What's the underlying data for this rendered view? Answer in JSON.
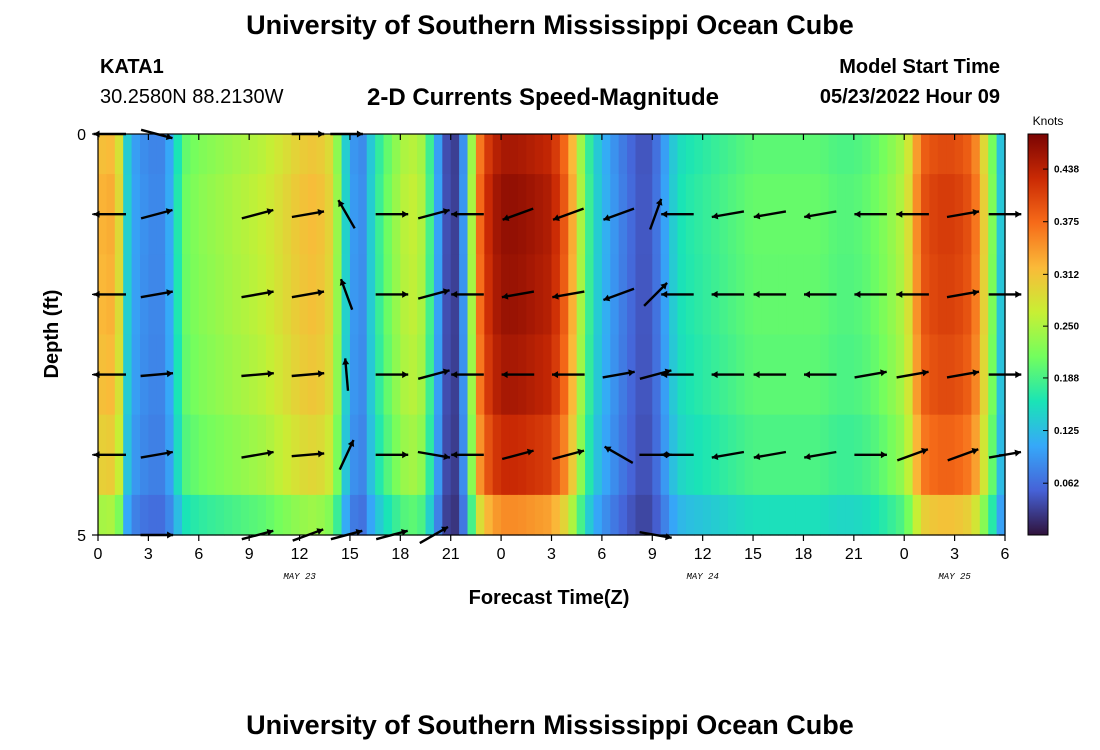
{
  "header": {
    "title": "University of Southern Mississippi Ocean Cube",
    "station": "KATA1",
    "coordinates": "30.2580N  88.2130W",
    "chart_title": "2-D Currents Speed-Magnitude",
    "model_start_label": "Model Start Time",
    "model_start_value": "05/23/2022 Hour 09"
  },
  "footer": {
    "title": "University of Southern Mississippi Ocean Cube"
  },
  "colors": {
    "colormap": [
      "#30123b",
      "#4662d7",
      "#36a8f9",
      "#1ae4b6",
      "#72fe5e",
      "#c8ef34",
      "#faba39",
      "#f66b19",
      "#ca2a04",
      "#7a0403"
    ],
    "arrow": "#000000"
  },
  "chart_data": {
    "type": "heatmap",
    "title": "2-D Currents Speed-Magnitude",
    "xlabel": "Forecast Time(Z)",
    "ylabel": "Depth (ft)",
    "colorbar_label": "Knots",
    "colorbar_ticks": [
      "0.438",
      "0.375",
      "0.312",
      "0.250",
      "0.188",
      "0.125",
      "0.062"
    ],
    "colorbar_tick_values": [
      0.438,
      0.375,
      0.312,
      0.25,
      0.188,
      0.125,
      0.062
    ],
    "colorbar_range": [
      0,
      0.48
    ],
    "x_ticks": [
      "0",
      "3",
      "6",
      "9",
      "12",
      "15",
      "18",
      "21",
      "0",
      "3",
      "6",
      "9",
      "12",
      "15",
      "18",
      "21",
      "0",
      "3",
      "6"
    ],
    "x_tick_hours": [
      0,
      3,
      6,
      9,
      12,
      15,
      18,
      21,
      24,
      27,
      30,
      33,
      36,
      39,
      42,
      45,
      48,
      51,
      54
    ],
    "date_labels": [
      {
        "text": "MAY 23",
        "hour": 12
      },
      {
        "text": "MAY 24",
        "hour": 36
      },
      {
        "text": "MAY 25",
        "hour": 51
      }
    ],
    "y_ticks": [
      "0",
      "5"
    ],
    "y_range": [
      0,
      5
    ],
    "x_range_hours": [
      0,
      54
    ],
    "speed_profile": {
      "hours": [
        0,
        0.5,
        1.2,
        1.6,
        2.2,
        3,
        3.8,
        4.5,
        5,
        6,
        7,
        8,
        9,
        10,
        11,
        12,
        13,
        14,
        14.5,
        15,
        15.7,
        16.5,
        17.5,
        18.5,
        19.2,
        20,
        20.5,
        21,
        21.5,
        22,
        22.5,
        23,
        23.5,
        24,
        25,
        26,
        27,
        28,
        28.5,
        29,
        29.5,
        30,
        31,
        32,
        32.5,
        33,
        33.5,
        34,
        34.5,
        35,
        36,
        37,
        38,
        39,
        40,
        41,
        42,
        43,
        44,
        45,
        46,
        47,
        48,
        48.5,
        49,
        50,
        51,
        52,
        52.5,
        53,
        53.5,
        54
      ],
      "speeds": [
        0.3,
        0.33,
        0.3,
        0.15,
        0.1,
        0.08,
        0.08,
        0.12,
        0.2,
        0.22,
        0.23,
        0.24,
        0.25,
        0.26,
        0.28,
        0.3,
        0.31,
        0.28,
        0.18,
        0.1,
        0.08,
        0.16,
        0.22,
        0.26,
        0.25,
        0.15,
        0.05,
        0.03,
        0.03,
        0.15,
        0.33,
        0.4,
        0.43,
        0.45,
        0.45,
        0.44,
        0.43,
        0.36,
        0.28,
        0.2,
        0.15,
        0.12,
        0.08,
        0.05,
        0.04,
        0.05,
        0.08,
        0.12,
        0.15,
        0.16,
        0.17,
        0.18,
        0.19,
        0.2,
        0.2,
        0.2,
        0.2,
        0.2,
        0.19,
        0.19,
        0.2,
        0.22,
        0.25,
        0.3,
        0.38,
        0.4,
        0.4,
        0.38,
        0.33,
        0.25,
        0.18,
        0.08
      ]
    },
    "depth_factors": [
      1.0,
      1.03,
      1.02,
      1.0,
      0.95,
      0.78
    ],
    "vectors": {
      "columns_hours": [
        0.7,
        3.5,
        6.5,
        9.5,
        12.5,
        14.8,
        17.5,
        20.0,
        22.0,
        25.0,
        28.0,
        31.0,
        33.2,
        34.5,
        37.5,
        40.0,
        43.0,
        46.0,
        48.5,
        51.5,
        54.0
      ],
      "rows_depth": [
        0,
        1,
        2,
        3,
        4,
        5
      ],
      "angles_deg": [
        [
          -180,
          -15,
          null,
          null,
          0,
          0,
          null,
          null,
          null,
          null,
          null,
          null,
          null,
          null,
          null,
          null,
          null,
          null,
          null,
          null,
          null
        ],
        [
          -180,
          15,
          null,
          15,
          10,
          120,
          0,
          15,
          -180,
          -160,
          -160,
          -160,
          70,
          -180,
          -170,
          -170,
          -170,
          -180,
          -180,
          10,
          0
        ],
        [
          -180,
          10,
          null,
          10,
          10,
          110,
          0,
          15,
          -180,
          -170,
          -170,
          -160,
          45,
          -180,
          -180,
          -180,
          -180,
          -180,
          -180,
          10,
          0
        ],
        [
          -180,
          5,
          null,
          5,
          5,
          95,
          0,
          15,
          -180,
          -180,
          -180,
          10,
          15,
          -180,
          -180,
          -180,
          -180,
          10,
          10,
          10,
          0
        ],
        [
          -180,
          10,
          null,
          10,
          5,
          65,
          0,
          -10,
          -180,
          15,
          15,
          150,
          0,
          -180,
          -170,
          -170,
          -170,
          0,
          20,
          20,
          10
        ],
        [
          null,
          0,
          null,
          15,
          20,
          15,
          15,
          30,
          null,
          null,
          null,
          null,
          -10,
          null,
          null,
          null,
          null,
          null,
          null,
          null,
          null
        ]
      ],
      "lengths": [
        0.85,
        0.85,
        0.85,
        0.85,
        0.85,
        0.85
      ]
    }
  }
}
